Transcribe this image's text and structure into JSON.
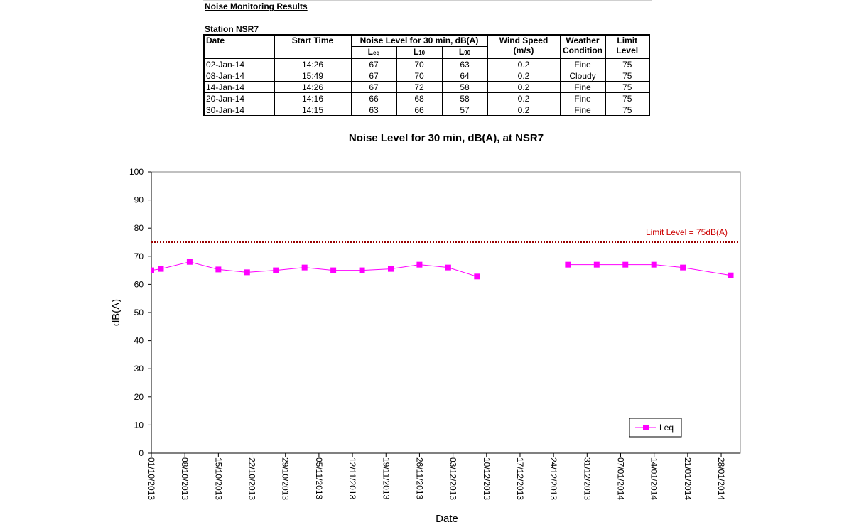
{
  "report": {
    "title": "Noise Monitoring Results",
    "station": "Station NSR7",
    "headers": {
      "date": "Date",
      "start_time": "Start Time",
      "noise_level": "Noise Level for 30 min, dB(A)",
      "leq_main": "L",
      "leq_sub": "eq",
      "l10_main": "L",
      "l10_sub": "10",
      "l90_main": "L",
      "l90_sub": "90",
      "wind_speed": "Wind Speed",
      "wind_unit": "(m/s)",
      "weather_1": "Weather",
      "weather_2": "Condition",
      "limit_1": "Limit",
      "limit_2": "Level"
    },
    "rows": [
      {
        "date": "02-Jan-14",
        "start": "14:26",
        "leq": "67",
        "l10": "70",
        "l90": "63",
        "wind": "0.2",
        "weather": "Fine",
        "limit": "75"
      },
      {
        "date": "08-Jan-14",
        "start": "15:49",
        "leq": "67",
        "l10": "70",
        "l90": "64",
        "wind": "0.2",
        "weather": "Cloudy",
        "limit": "75"
      },
      {
        "date": "14-Jan-14",
        "start": "14:26",
        "leq": "67",
        "l10": "72",
        "l90": "58",
        "wind": "0.2",
        "weather": "Fine",
        "limit": "75"
      },
      {
        "date": "20-Jan-14",
        "start": "14:16",
        "leq": "66",
        "l10": "68",
        "l90": "58",
        "wind": "0.2",
        "weather": "Fine",
        "limit": "75"
      },
      {
        "date": "30-Jan-14",
        "start": "14:15",
        "leq": "63",
        "l10": "66",
        "l90": "57",
        "wind": "0.2",
        "weather": "Fine",
        "limit": "75"
      }
    ]
  },
  "colors": {
    "series": "#ff00ff",
    "limit_line": "#990000",
    "limit_label": "#cc0000",
    "plot_border": "#808080"
  },
  "chart_data": {
    "type": "line",
    "title": "Noise Level for 30 min, dB(A), at NSR7",
    "xlabel": "Date",
    "ylabel": "dB(A)",
    "ylim": [
      0,
      100
    ],
    "yticks": [
      0,
      10,
      20,
      30,
      40,
      50,
      60,
      70,
      80,
      90,
      100
    ],
    "xlim": [
      "2013-10-01",
      "2014-02-01"
    ],
    "x_tick_labels": [
      "01/10/2013",
      "08/10/2013",
      "15/10/2013",
      "22/10/2013",
      "29/10/2013",
      "05/11/2013",
      "12/11/2013",
      "19/11/2013",
      "26/11/2013",
      "03/12/2013",
      "10/12/2013",
      "17/12/2013",
      "24/12/2013",
      "31/12/2013",
      "07/01/2014",
      "14/01/2014",
      "21/01/2014",
      "28/01/2014"
    ],
    "grid": false,
    "legend": {
      "position": "bottom-right"
    },
    "series": [
      {
        "name": "Leq",
        "x": [
          "2013-10-01",
          "2013-10-03",
          "2013-10-09",
          "2013-10-15",
          "2013-10-21",
          "2013-10-27",
          "2013-11-02",
          "2013-11-08",
          "2013-11-14",
          "2013-11-20",
          "2013-11-26",
          "2013-12-02",
          "2013-12-08",
          "2013-12-14",
          "2013-12-27",
          "2014-01-02",
          "2014-01-08",
          "2014-01-14",
          "2014-01-20",
          "2014-01-30"
        ],
        "y": [
          65,
          65.5,
          68,
          65.3,
          64.3,
          65,
          66,
          65,
          65,
          65.5,
          67,
          66,
          62.8,
          null,
          67,
          67,
          67,
          67,
          66,
          63.2
        ]
      }
    ],
    "reference_line": {
      "y": 75,
      "label": "Limit Level  = 75dB(A)",
      "style": "dotted"
    }
  }
}
